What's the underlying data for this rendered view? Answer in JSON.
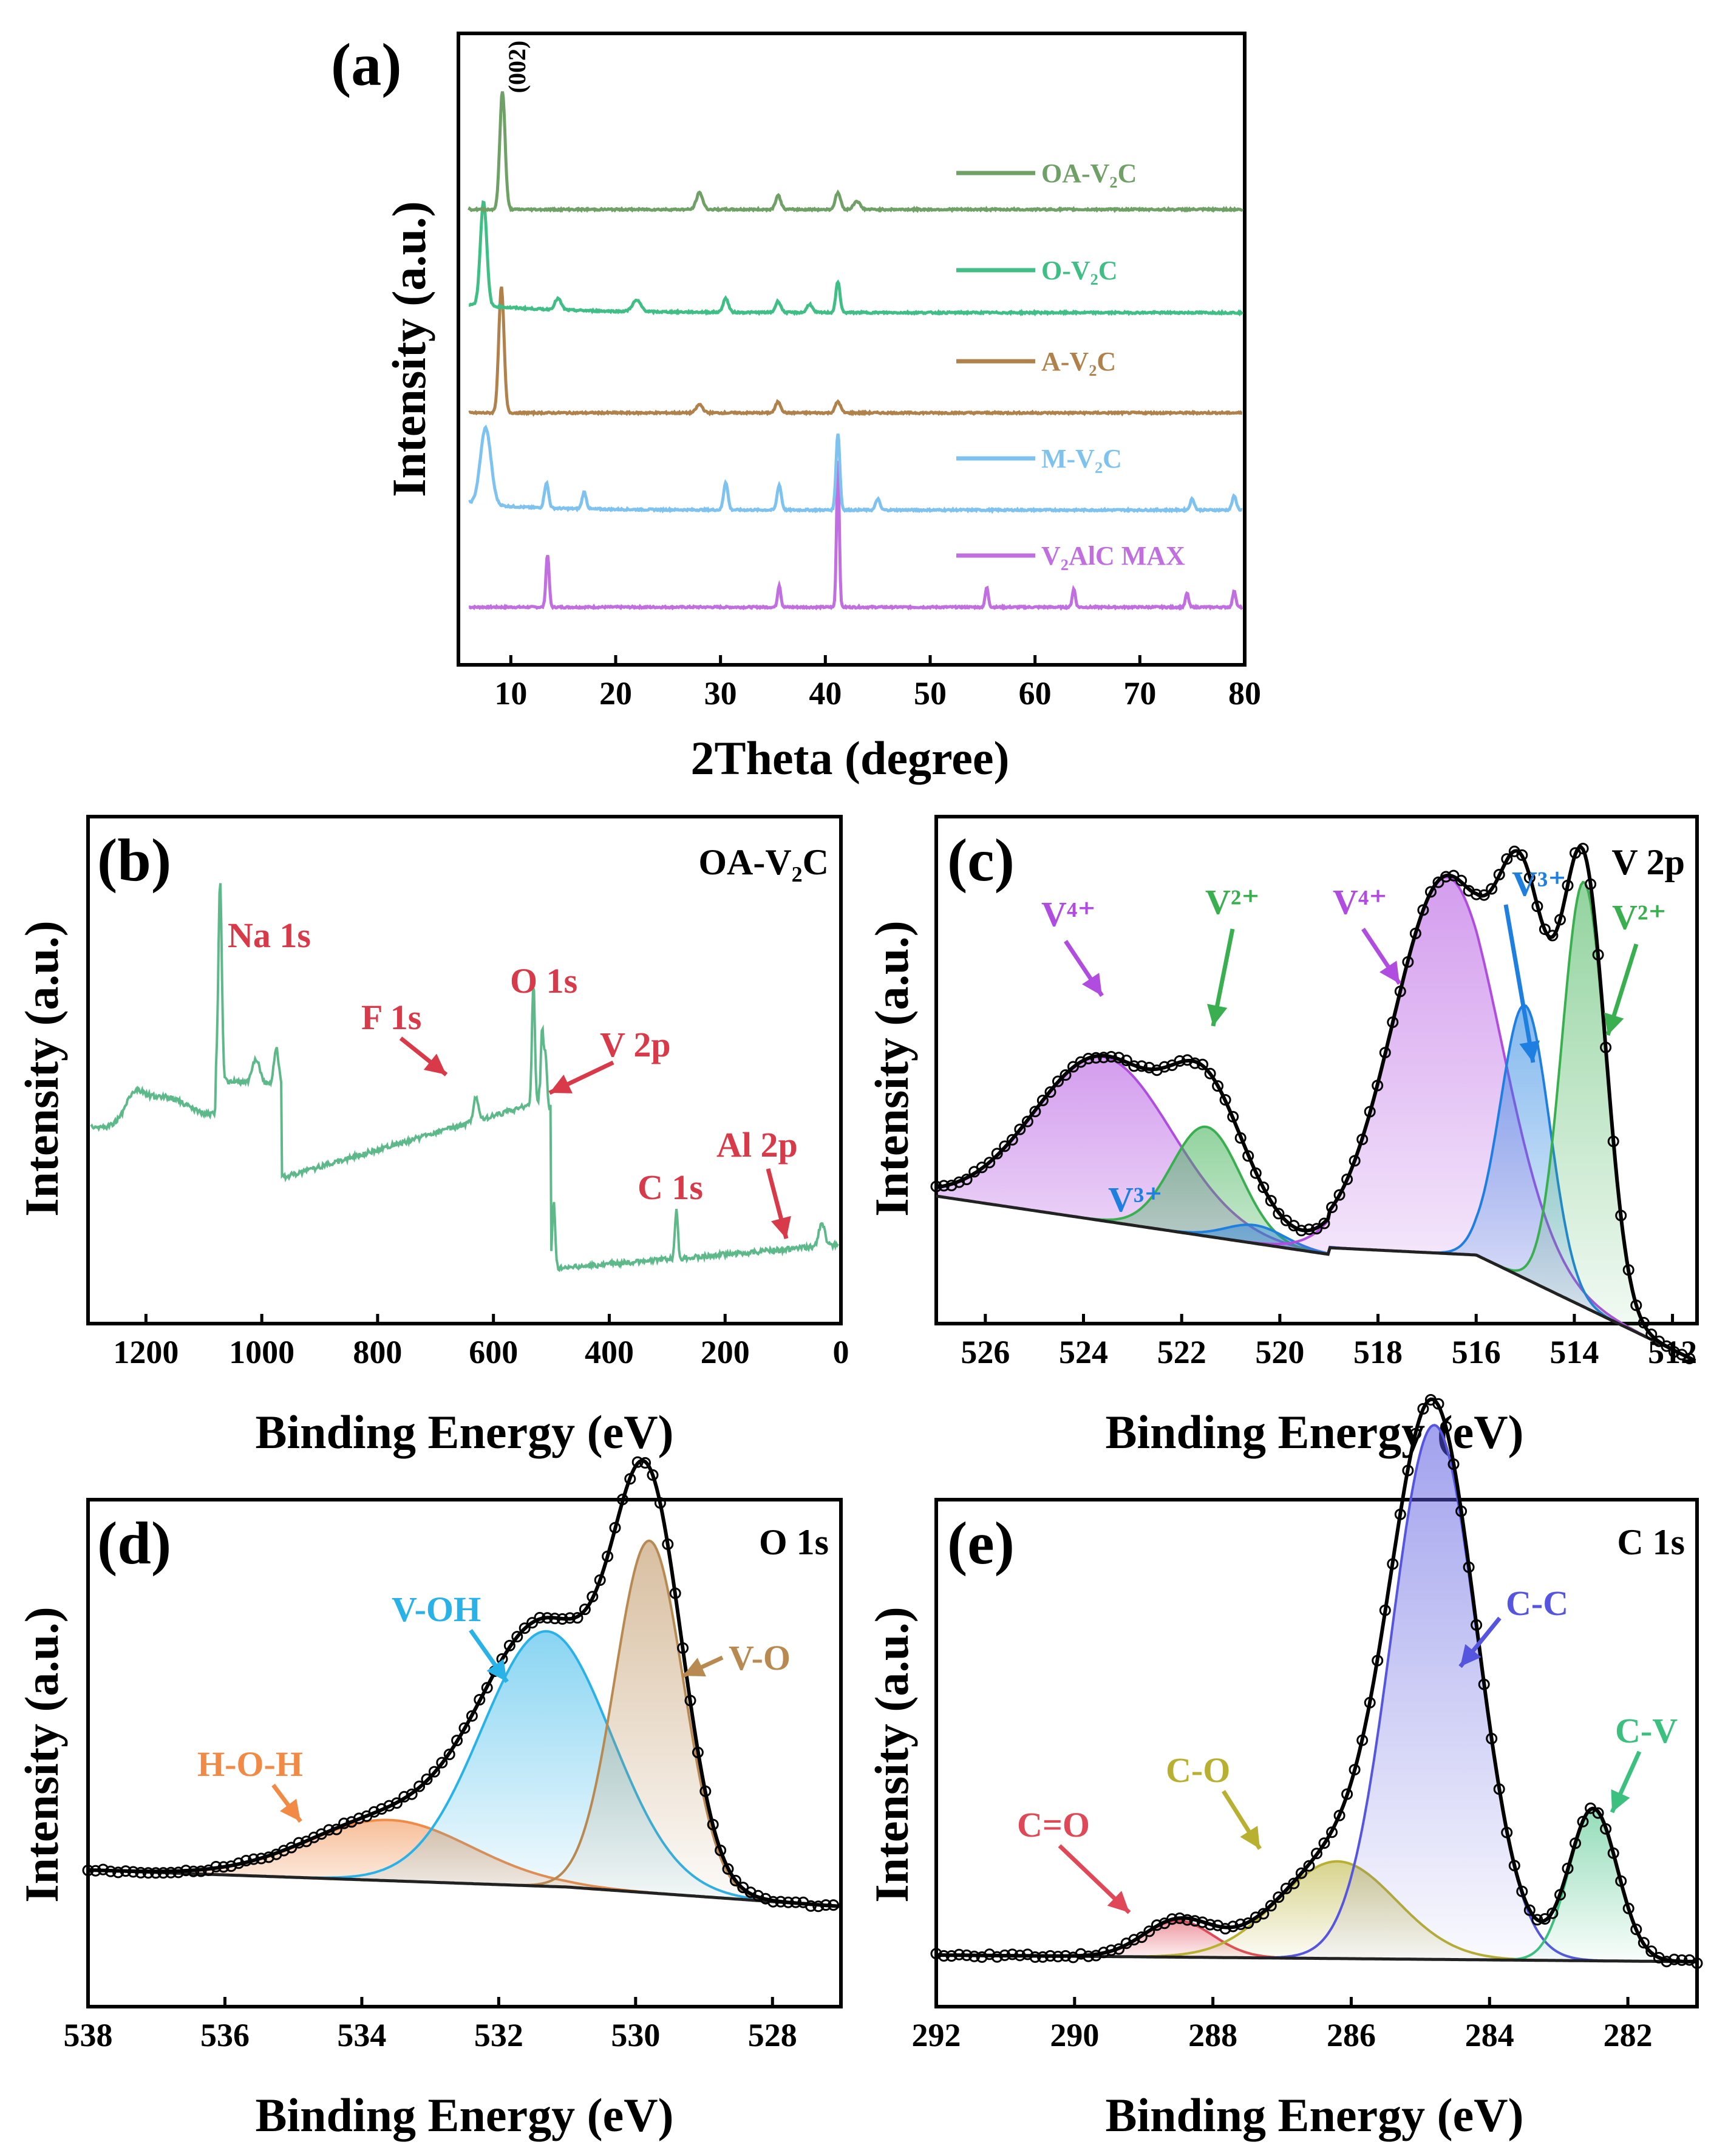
{
  "chart_data": [
    {
      "id": "a",
      "type": "line",
      "panel_label": "(a)",
      "xlabel": "2Theta (degree)",
      "ylabel": "Intensity (a.u.)",
      "xlim": [
        5,
        80
      ],
      "xticks": [
        10,
        20,
        30,
        40,
        50,
        60,
        70,
        80
      ],
      "peak_annotation": "(002)",
      "series": [
        {
          "name": "OA-V₂C",
          "color": "#6fa066",
          "offset": 4,
          "peaks": [
            [
              9.2,
              0.85,
              0.25
            ],
            [
              28,
              0.12,
              0.3
            ],
            [
              35.5,
              0.1,
              0.25
            ],
            [
              41.2,
              0.12,
              0.25
            ],
            [
              43,
              0.06,
              0.3
            ]
          ]
        },
        {
          "name": "O-V₂C",
          "color": "#3fbf86",
          "offset": 3,
          "peaks": [
            [
              7.4,
              0.75,
              0.3
            ],
            [
              14.5,
              0.08,
              0.3
            ],
            [
              22,
              0.08,
              0.4
            ],
            [
              30.5,
              0.1,
              0.25
            ],
            [
              35.5,
              0.08,
              0.25
            ],
            [
              41.2,
              0.22,
              0.2
            ],
            [
              38.5,
              0.06,
              0.25
            ]
          ]
        },
        {
          "name": "A-V₂C",
          "color": "#b0814a",
          "offset": 2,
          "peaks": [
            [
              9.1,
              0.9,
              0.25
            ],
            [
              28,
              0.06,
              0.3
            ],
            [
              35.5,
              0.08,
              0.25
            ],
            [
              41.2,
              0.08,
              0.25
            ]
          ]
        },
        {
          "name": "M-V₂C",
          "color": "#7ec2f0",
          "offset": 1,
          "peaks": [
            [
              7.6,
              0.55,
              0.5
            ],
            [
              13.4,
              0.18,
              0.2
            ],
            [
              17,
              0.12,
              0.2
            ],
            [
              30.5,
              0.2,
              0.2
            ],
            [
              35.6,
              0.18,
              0.2
            ],
            [
              41.2,
              0.55,
              0.18
            ],
            [
              45,
              0.08,
              0.2
            ],
            [
              75,
              0.08,
              0.2
            ],
            [
              79,
              0.1,
              0.2
            ]
          ]
        },
        {
          "name": "V₂AlC MAX",
          "color": "#c06ee0",
          "offset": 0,
          "peaks": [
            [
              13.5,
              0.38,
              0.15
            ],
            [
              35.6,
              0.16,
              0.15
            ],
            [
              41.2,
              1.05,
              0.13
            ],
            [
              55.4,
              0.14,
              0.15
            ],
            [
              63.7,
              0.13,
              0.15
            ],
            [
              74.5,
              0.1,
              0.15
            ],
            [
              79,
              0.12,
              0.15
            ]
          ]
        }
      ]
    },
    {
      "id": "b",
      "type": "line",
      "panel_label": "(b)",
      "corner_label": "OA-V₂C",
      "xlabel": "Binding Energy (eV)",
      "ylabel": "Intensity (a.u.)",
      "xlim": [
        1300,
        0
      ],
      "xticks": [
        1200,
        1000,
        800,
        600,
        400,
        200,
        0
      ],
      "color": "#5db98a",
      "annotations": [
        "Na 1s",
        "F 1s",
        "O 1s",
        "V 2p",
        "C 1s",
        "Al 2p"
      ],
      "annotation_color": "#d93a4a"
    },
    {
      "id": "c",
      "type": "line",
      "panel_label": "(c)",
      "corner_label": "V 2p",
      "xlabel": "Binding Energy (eV)",
      "ylabel": "Intensity (a.u.)",
      "xlim": [
        527,
        511.5
      ],
      "xticks": [
        526,
        524,
        522,
        520,
        518,
        516,
        514,
        512
      ],
      "components": [
        {
          "name": "V⁴⁺",
          "color": "#b04de0",
          "center": 523.6,
          "height": 0.27,
          "width": 1.4
        },
        {
          "name": "V²⁺",
          "color": "#3aaf50",
          "center": 521.5,
          "height": 0.18,
          "width": 0.7
        },
        {
          "name": "V³⁺",
          "color": "#1f7fe0",
          "center": 520.5,
          "height": 0.03,
          "width": 0.6
        },
        {
          "name": "V⁴⁺",
          "color": "#b04de0",
          "center": 516.6,
          "height": 0.62,
          "width": 1.1
        },
        {
          "name": "V³⁺",
          "color": "#1f7fe0",
          "center": 515.0,
          "height": 0.45,
          "width": 0.5
        },
        {
          "name": "V²⁺",
          "color": "#3aaf50",
          "center": 513.8,
          "height": 0.7,
          "width": 0.45
        }
      ],
      "labels": {
        "v4a": "V4+",
        "v2a": "V2+",
        "v4b": "V4+",
        "v3a": "V3+",
        "v2b": "V2+",
        "v3b": "V3+"
      }
    },
    {
      "id": "d",
      "type": "line",
      "panel_label": "(d)",
      "corner_label": "O 1s",
      "xlabel": "Binding Energy (eV)",
      "ylabel": "Intensity (a.u.)",
      "xlim": [
        538,
        527
      ],
      "xticks": [
        538,
        536,
        534,
        532,
        530,
        528
      ],
      "components": [
        {
          "name": "H-O-H",
          "color": "#f08a45",
          "center": 533.6,
          "height": 0.1,
          "width": 1.2
        },
        {
          "name": "V-OH",
          "color": "#29b2e8",
          "center": 531.3,
          "height": 0.42,
          "width": 0.95
        },
        {
          "name": "V-O",
          "color": "#b88a52",
          "center": 529.8,
          "height": 0.58,
          "width": 0.5
        }
      ]
    },
    {
      "id": "e",
      "type": "line",
      "panel_label": "(e)",
      "corner_label": "C 1s",
      "xlabel": "Binding Energy (eV)",
      "ylabel": "Intensity (a.u.)",
      "xlim": [
        292,
        281
      ],
      "xticks": [
        292,
        290,
        288,
        286,
        284,
        282
      ],
      "components": [
        {
          "name": "C=O",
          "color": "#e04858",
          "center": 288.5,
          "height": 0.06,
          "width": 0.5
        },
        {
          "name": "C-O",
          "color": "#b8b030",
          "center": 286.2,
          "height": 0.16,
          "width": 0.85
        },
        {
          "name": "C-C",
          "color": "#5555e0",
          "center": 284.8,
          "height": 0.88,
          "width": 0.62
        },
        {
          "name": "C-V",
          "color": "#3cc080",
          "center": 282.5,
          "height": 0.25,
          "width": 0.35
        }
      ]
    }
  ]
}
